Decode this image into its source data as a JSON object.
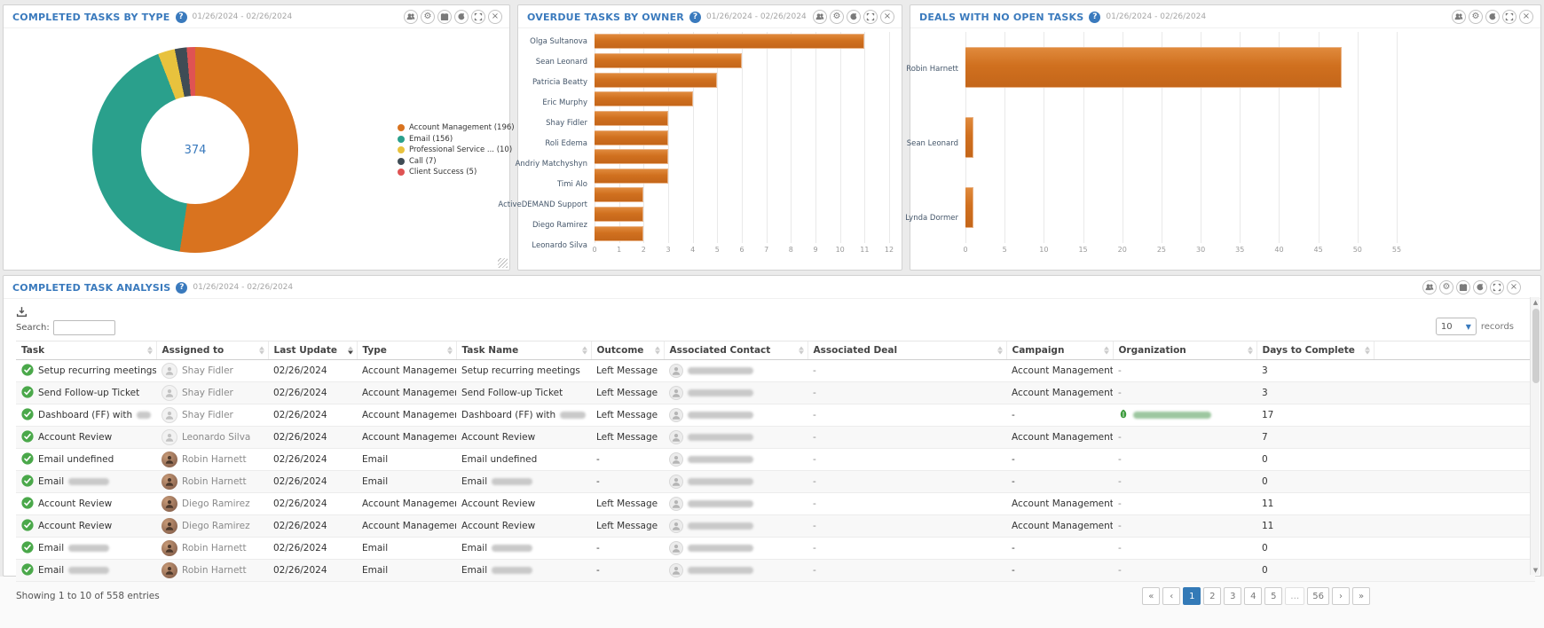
{
  "panels": {
    "completed_by_type": {
      "title": "COMPLETED TASKS BY TYPE",
      "date_range": "01/26/2024 - 02/26/2024",
      "icons": [
        "users",
        "gear",
        "calendar",
        "refresh",
        "expand",
        "close"
      ]
    },
    "overdue_by_owner": {
      "title": "OVERDUE TASKS BY OWNER",
      "date_range": "01/26/2024 - 02/26/2024",
      "icons": [
        "users",
        "gear",
        "refresh",
        "expand",
        "close"
      ]
    },
    "deals_no_open_tasks": {
      "title": "DEALS WITH NO OPEN TASKS",
      "date_range": "01/26/2024 - 02/26/2024",
      "icons": [
        "users",
        "gear",
        "refresh",
        "expand",
        "close"
      ]
    },
    "task_analysis": {
      "title": "COMPLETED TASK ANALYSIS",
      "date_range": "01/26/2024 - 02/26/2024",
      "icons": [
        "users",
        "gear",
        "calendar",
        "refresh",
        "expand",
        "close"
      ],
      "search_label": "Search:",
      "search_value": "",
      "records_per_page": "10",
      "records_label": "records",
      "columns": [
        {
          "label": "Task"
        },
        {
          "label": "Assigned to"
        },
        {
          "label": "Last Update",
          "sort": "desc"
        },
        {
          "label": "Type"
        },
        {
          "label": "Task Name"
        },
        {
          "label": "Outcome"
        },
        {
          "label": "Associated Contact"
        },
        {
          "label": "Associated Deal"
        },
        {
          "label": "Campaign"
        },
        {
          "label": "Organization"
        },
        {
          "label": "Days to Complete"
        }
      ],
      "rows": [
        {
          "task": "Setup recurring meetings",
          "task_redacted": false,
          "assigned": "Shay Fidler",
          "avatar": "ghost",
          "last_update": "02/26/2024",
          "type": "Account Management",
          "task_name": "Setup recurring meetings",
          "outcome": "Left Message",
          "contact": "(redacted)",
          "deal": "-",
          "campaign": "Account Management Task Setup",
          "organization": "-",
          "days": "3"
        },
        {
          "task": "Send Follow-up Ticket",
          "task_redacted": false,
          "assigned": "Shay Fidler",
          "avatar": "ghost",
          "last_update": "02/26/2024",
          "type": "Account Management",
          "task_name": "Send Follow-up Ticket",
          "outcome": "Left Message",
          "contact": "(redacted)",
          "deal": "-",
          "campaign": "Account Management Task Setup",
          "organization": "-",
          "days": "3"
        },
        {
          "task": "Dashboard (FF) with",
          "task_redacted": true,
          "assigned": "Shay Fidler",
          "avatar": "ghost",
          "last_update": "02/26/2024",
          "type": "Account Management",
          "task_name": "Dashboard (FF) with",
          "outcome": "Left Message",
          "contact": "(redacted)",
          "deal": "-",
          "campaign": "-",
          "organization": "(redacted)",
          "org_logo": true,
          "days": "17"
        },
        {
          "task": "Account Review",
          "task_redacted": false,
          "assigned": "Leonardo Silva",
          "avatar": "ghost",
          "last_update": "02/26/2024",
          "type": "Account Management",
          "task_name": "Account Review",
          "outcome": "Left Message",
          "contact": "(redacted)",
          "deal": "-",
          "campaign": "Account Management Task Setup",
          "organization": "-",
          "days": "7"
        },
        {
          "task": "Email undefined",
          "task_redacted": false,
          "assigned": "Robin Harnett",
          "avatar": "photo",
          "last_update": "02/26/2024",
          "type": "Email",
          "task_name": "Email undefined",
          "outcome": "-",
          "contact": "(redacted)",
          "deal": "-",
          "campaign": "-",
          "organization": "-",
          "days": "0"
        },
        {
          "task": "Email",
          "task_redacted": true,
          "assigned": "Robin Harnett",
          "avatar": "photo",
          "last_update": "02/26/2024",
          "type": "Email",
          "task_name": "Email",
          "outcome": "-",
          "contact": "(redacted)",
          "deal": "-",
          "campaign": "-",
          "organization": "-",
          "days": "0"
        },
        {
          "task": "Account Review",
          "task_redacted": false,
          "assigned": "Diego Ramirez",
          "avatar": "photo",
          "last_update": "02/26/2024",
          "type": "Account Management",
          "task_name": "Account Review",
          "outcome": "Left Message",
          "contact": "(redacted)",
          "deal": "-",
          "campaign": "Account Management Task Setup",
          "organization": "-",
          "days": "11"
        },
        {
          "task": "Account Review",
          "task_redacted": false,
          "assigned": "Diego Ramirez",
          "avatar": "photo",
          "last_update": "02/26/2024",
          "type": "Account Management",
          "task_name": "Account Review",
          "outcome": "Left Message",
          "contact": "(redacted)",
          "deal": "-",
          "campaign": "Account Management Task Setup",
          "organization": "-",
          "days": "11"
        },
        {
          "task": "Email",
          "task_redacted": true,
          "assigned": "Robin Harnett",
          "avatar": "photo",
          "last_update": "02/26/2024",
          "type": "Email",
          "task_name": "Email",
          "outcome": "-",
          "contact": "(redacted)",
          "deal": "-",
          "campaign": "-",
          "organization": "-",
          "days": "0"
        },
        {
          "task": "Email",
          "task_redacted": true,
          "assigned": "Robin Harnett",
          "avatar": "photo",
          "last_update": "02/26/2024",
          "type": "Email",
          "task_name": "Email",
          "outcome": "-",
          "contact": "(redacted)",
          "deal": "-",
          "campaign": "-",
          "organization": "-",
          "days": "0"
        }
      ],
      "footer": "Showing 1 to 10 of 558 entries",
      "pagination": {
        "items": [
          "«",
          "‹",
          "1",
          "2",
          "3",
          "4",
          "5",
          "…",
          "56",
          "›",
          "»"
        ],
        "active": "1"
      }
    }
  },
  "chart_data": [
    {
      "type": "pie",
      "title": "COMPLETED TASKS BY TYPE",
      "labels": [
        "Account Management (196)",
        "Email (156)",
        "Professional Service ... (10)",
        "Call (7)",
        "Client Success (5)"
      ],
      "values": [
        196,
        156,
        10,
        7,
        5
      ],
      "colors": [
        "#d9731f",
        "#2aa08c",
        "#e8c23d",
        "#3f4c55",
        "#df5353"
      ],
      "center_label": "374",
      "legend_position": "right",
      "donut": true
    },
    {
      "type": "bar",
      "orientation": "horizontal",
      "title": "OVERDUE TASKS BY OWNER",
      "categories": [
        "Olga Sultanova",
        "Sean Leonard",
        "Patricia Beatty",
        "Eric Murphy",
        "Shay Fidler",
        "Roli Edema",
        "Andriy Matchyshyn",
        "Timi Alo",
        "ActiveDEMAND Support",
        "Diego Ramirez",
        "Leonardo Silva"
      ],
      "values": [
        11,
        6,
        5,
        4,
        3,
        3,
        3,
        3,
        2,
        2,
        2
      ],
      "xlim": [
        0,
        12
      ],
      "xticks": [
        0,
        1,
        2,
        3,
        4,
        5,
        6,
        7,
        8,
        9,
        10,
        11,
        12
      ],
      "bar_color": "#d0701f",
      "grid": true
    },
    {
      "type": "bar",
      "orientation": "horizontal",
      "title": "DEALS WITH NO OPEN TASKS",
      "categories": [
        "Robin Harnett",
        "Sean Leonard",
        "Lynda Dormer"
      ],
      "values": [
        48,
        1,
        1
      ],
      "xlim": [
        0,
        55
      ],
      "xticks": [
        0,
        5,
        10,
        15,
        20,
        25,
        30,
        35,
        40,
        45,
        50,
        55
      ],
      "bar_color": "#d0701f",
      "grid": true
    }
  ],
  "colors": {
    "accent_blue": "#3a7abd",
    "bar_orange": "#d0701f",
    "check_green": "#4aa84a",
    "active_page_blue": "#337ab7"
  }
}
